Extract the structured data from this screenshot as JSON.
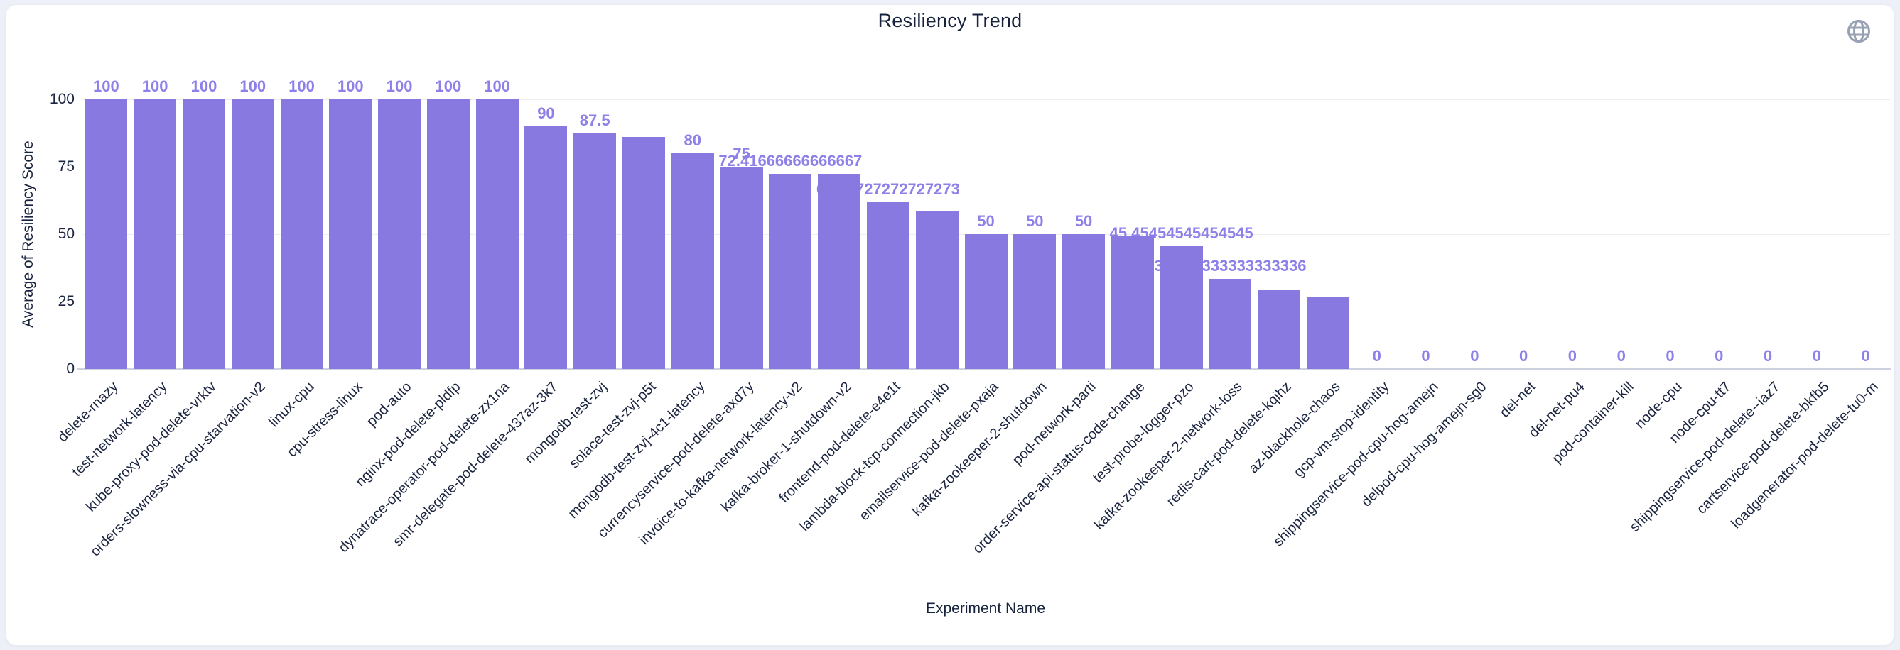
{
  "page": {
    "title": "Resiliency Trend"
  },
  "toolbar": {
    "globe_icon": "globe-icon"
  },
  "colors": {
    "bar": "#8879e0",
    "bar_label": "#8d81e9",
    "text_dark": "#17223d",
    "gridline": "#ededf2",
    "axis_line": "#ccd2e0",
    "card_bg": "#ffffff",
    "page_bg": "#edf0f6",
    "icon_gray": "#98a0b3"
  },
  "chart_data": {
    "type": "bar",
    "title": "Resiliency Trend",
    "xlabel": "Experiment Name",
    "ylabel": "Average of Resiliency Score",
    "ylim": [
      0,
      100
    ],
    "y_ticks": [
      "0",
      "25",
      "50",
      "75",
      "100"
    ],
    "grid": true,
    "legend": false,
    "bars": [
      {
        "name": "delete-rnazy",
        "value": 100,
        "label": "100"
      },
      {
        "name": "test-network-latency",
        "value": 100,
        "label": "100"
      },
      {
        "name": "kube-proxy-pod-delete-vrktv",
        "value": 100,
        "label": "100"
      },
      {
        "name": "orders-slowness-via-cpu-starvation-v2",
        "value": 100,
        "label": "100"
      },
      {
        "name": "linux-cpu",
        "value": 100,
        "label": "100"
      },
      {
        "name": "cpu-stress-linux",
        "value": 100,
        "label": "100"
      },
      {
        "name": "pod-auto",
        "value": 100,
        "label": "100"
      },
      {
        "name": "nginx-pod-delete-pldfp",
        "value": 100,
        "label": "100"
      },
      {
        "name": "dynatrace-operator-pod-delete-zx1na",
        "value": 100,
        "label": "100"
      },
      {
        "name": "smr-delegate-pod-delete-437az-3k7",
        "value": 90,
        "label": "90"
      },
      {
        "name": "mongodb-test-zvj",
        "value": 87.5,
        "label": "87.5"
      },
      {
        "name": "solace-test-zvj-p5t",
        "value": 86.11111111111111,
        "label": null
      },
      {
        "name": "mongodb-test-zvj-4c1-latency",
        "value": 80,
        "label": "80"
      },
      {
        "name": "currencyservice-pod-delete-axd7y",
        "value": 75,
        "label": "75"
      },
      {
        "name": "invoice-to-kafka-network-latency-v2",
        "value": 72.41666666666667,
        "label": "72.41666666666667"
      },
      {
        "name": "kafka-broker-1-shutdown-v2",
        "value": 72.27272727272727,
        "label": null
      },
      {
        "name": "frontend-pod-delete-e4e1t",
        "value": 61.72727272727273,
        "label": "61.72727272727273"
      },
      {
        "name": "lambda-block-tcp-connection-jkb",
        "value": 58.333333333333336,
        "label": null
      },
      {
        "name": "emailservice-pod-delete-pxaja",
        "value": 50,
        "label": "50"
      },
      {
        "name": "kafka-zookeeper-2-shutdown",
        "value": 50,
        "label": "50"
      },
      {
        "name": "pod-network-parti",
        "value": 50,
        "label": "50"
      },
      {
        "name": "order-service-api-status-code-change",
        "value": 49.583333333333336,
        "label": null
      },
      {
        "name": "test-probe-logger-pzo",
        "value": 45.45454545454545,
        "label": "45.45454545454545"
      },
      {
        "name": "kafka-zookeeper-2-network-loss",
        "value": 33.333333333333336,
        "label": "33.333333333333336"
      },
      {
        "name": "redis-cart-pod-delete-kqihz",
        "value": 29.09090909090909,
        "label": null
      },
      {
        "name": "az-blackhole-chaos",
        "value": 26.666666666666668,
        "label": null
      },
      {
        "name": "gcp-vm-stop-identity",
        "value": 0,
        "label": "0"
      },
      {
        "name": "shippingservice-pod-cpu-hog-amejn",
        "value": 0,
        "label": "0"
      },
      {
        "name": "delpod-cpu-hog-amejn-sg0",
        "value": 0,
        "label": "0"
      },
      {
        "name": "del-net",
        "value": 0,
        "label": "0"
      },
      {
        "name": "del-net-pu4",
        "value": 0,
        "label": "0"
      },
      {
        "name": "pod-container-kill",
        "value": 0,
        "label": "0"
      },
      {
        "name": "node-cpu",
        "value": 0,
        "label": "0"
      },
      {
        "name": "node-cpu-tt7",
        "value": 0,
        "label": "0"
      },
      {
        "name": "shippingservice-pod-delete--iaz7",
        "value": 0,
        "label": "0"
      },
      {
        "name": "cartservice-pod-delete-bkfb5",
        "value": 0,
        "label": "0"
      },
      {
        "name": "loadgenerator-pod-delete-tu0-m",
        "value": 0,
        "label": "0"
      }
    ]
  }
}
